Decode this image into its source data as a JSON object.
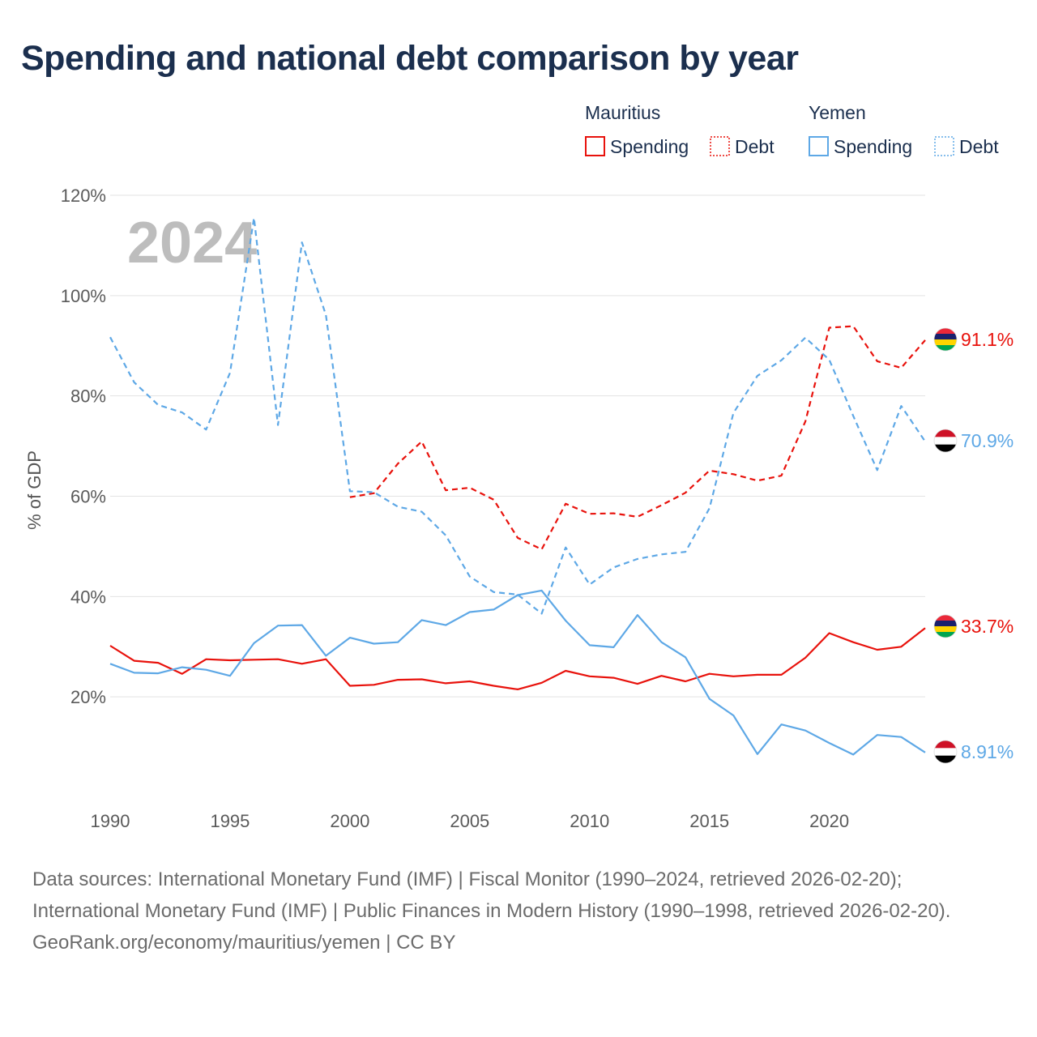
{
  "title": "Spending and national debt comparison by year",
  "legend": {
    "groups": [
      {
        "country": "Mauritius",
        "color": "#e8120c",
        "items": [
          {
            "label": "Spending",
            "style": "solid"
          },
          {
            "label": "Debt",
            "style": "dotted"
          }
        ]
      },
      {
        "country": "Yemen",
        "color": "#5ea8e6",
        "items": [
          {
            "label": "Spending",
            "style": "solid"
          },
          {
            "label": "Debt",
            "style": "dotted"
          }
        ]
      }
    ]
  },
  "chart_data": {
    "type": "line",
    "ylabel": "% of GDP",
    "ylim": [
      0,
      120
    ],
    "xlim": [
      1990,
      2024
    ],
    "yticks": [
      20,
      40,
      60,
      80,
      100,
      120
    ],
    "ytick_labels": [
      "20%",
      "40%",
      "60%",
      "80%",
      "100%",
      "120%"
    ],
    "xticks": [
      1990,
      1995,
      2000,
      2005,
      2010,
      2015,
      2020
    ],
    "xtick_labels": [
      "1990",
      "1995",
      "2000",
      "2005",
      "2010",
      "2015",
      "2020"
    ],
    "year_label": "2024",
    "grid": true,
    "series": [
      {
        "name": "Mauritius Spending",
        "country": "Mauritius",
        "kind": "spending",
        "color": "#e8120c",
        "dash": "solid",
        "start_year": 1990,
        "values": [
          30.2,
          27.2,
          26.8,
          24.6,
          27.5,
          27.3,
          27.4,
          27.5,
          26.6,
          27.5,
          22.2,
          22.4,
          23.4,
          23.5,
          22.7,
          23.1,
          22.2,
          21.5,
          22.8,
          25.2,
          24.1,
          23.8,
          22.6,
          24.2,
          23.1,
          24.6,
          24.1,
          24.4,
          24.4,
          27.8,
          32.7,
          30.9,
          29.4,
          30.0,
          33.7
        ],
        "end_label": "33.7%"
      },
      {
        "name": "Mauritius Debt",
        "country": "Mauritius",
        "kind": "debt",
        "color": "#e8120c",
        "dash": "dashed",
        "start_year": 2000,
        "values": [
          59.8,
          60.6,
          66.5,
          70.9,
          61.2,
          61.7,
          59.3,
          51.7,
          49.4,
          58.5,
          56.5,
          56.6,
          55.9,
          58.2,
          60.7,
          65.1,
          64.4,
          63.1,
          64.1,
          74.9,
          93.6,
          93.9,
          86.9,
          85.6,
          91.1
        ],
        "end_label": "91.1%"
      },
      {
        "name": "Yemen Spending",
        "country": "Yemen",
        "kind": "spending",
        "color": "#5ea8e6",
        "dash": "solid",
        "start_year": 1990,
        "values": [
          26.6,
          24.8,
          24.7,
          25.9,
          25.4,
          24.2,
          30.7,
          34.2,
          34.3,
          28.2,
          31.8,
          30.6,
          30.9,
          35.3,
          34.3,
          36.9,
          37.4,
          40.3,
          41.2,
          35.2,
          30.3,
          29.9,
          36.3,
          30.9,
          27.9,
          19.6,
          16.3,
          8.6,
          14.5,
          13.3,
          10.8,
          8.5,
          12.4,
          12.0,
          8.91
        ],
        "end_label": "8.91%"
      },
      {
        "name": "Yemen Debt",
        "country": "Yemen",
        "kind": "debt",
        "color": "#5ea8e6",
        "dash": "dashed",
        "start_year": 1990,
        "values": [
          91.7,
          82.7,
          78.2,
          76.7,
          73.3,
          84.6,
          115.5,
          74.2,
          110.6,
          96.1,
          61.0,
          60.8,
          57.9,
          56.9,
          52.2,
          44.0,
          40.9,
          40.4,
          36.6,
          49.8,
          42.4,
          45.8,
          47.5,
          48.4,
          48.9,
          57.6,
          76.6,
          84.0,
          87.1,
          91.6,
          87.2,
          76.0,
          65.2,
          78.0,
          70.9
        ],
        "end_label": "70.9%"
      }
    ]
  },
  "flags": {
    "Mauritius": [
      "#ea2839",
      "#1a206d",
      "#ffd500",
      "#00a551"
    ],
    "Yemen": [
      "#ce1126",
      "#ffffff",
      "#000000"
    ]
  },
  "sources": {
    "line1": "Data sources: International Monetary Fund (IMF) | Fiscal Monitor (1990–2024, retrieved 2026-02-20); International Monetary Fund (IMF) | Public Finances in Modern History (1990–1998, retrieved 2026-02-20).",
    "line2": "GeoRank.org/economy/mauritius/yemen | CC BY"
  }
}
